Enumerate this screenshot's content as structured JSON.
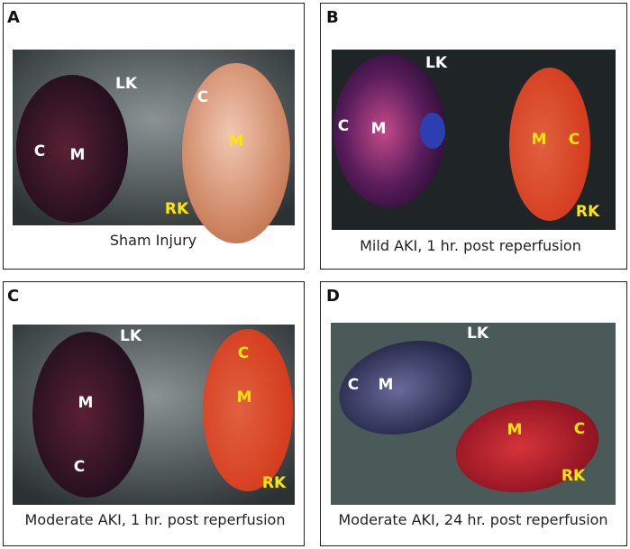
{
  "panels": [
    {
      "letter": "A",
      "caption": "Sham Injury",
      "labels": [
        "LK",
        "C",
        "M",
        "C",
        "M",
        "RK"
      ]
    },
    {
      "letter": "B",
      "caption": "Mild AKI, 1 hr. post reperfusion",
      "labels": [
        "LK",
        "C",
        "M",
        "M",
        "C",
        "RK"
      ]
    },
    {
      "letter": "C",
      "caption": "Moderate AKI, 1 hr. post reperfusion",
      "labels": [
        "LK",
        "C",
        "M",
        "M",
        "C",
        "RK"
      ]
    },
    {
      "letter": "D",
      "caption": "Moderate AKI, 24 hr. post reperfusion",
      "labels": [
        "LK",
        "C",
        "M",
        "M",
        "C",
        "RK"
      ]
    }
  ]
}
